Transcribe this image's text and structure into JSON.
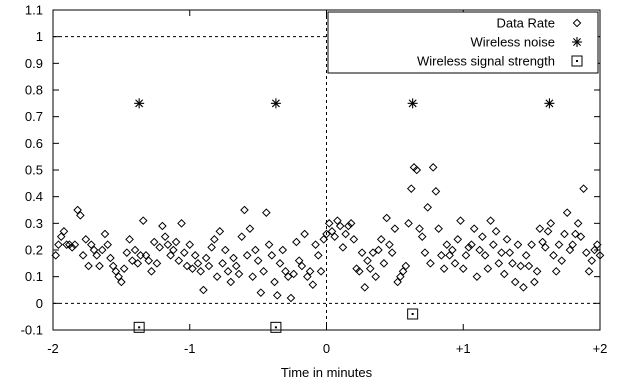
{
  "chart_data": {
    "type": "scatter",
    "xlabel": "Time in minutes",
    "ylabel": "",
    "xlim": [
      -2,
      2
    ],
    "ylim": [
      -0.1,
      1.1
    ],
    "xticks": [
      {
        "value": -2,
        "label": "-2"
      },
      {
        "value": -1,
        "label": "-1"
      },
      {
        "value": 0,
        "label": "0"
      },
      {
        "value": 1,
        "label": "+1"
      },
      {
        "value": 2,
        "label": "+2"
      }
    ],
    "yticks": [
      {
        "value": -0.1,
        "label": "-0.1"
      },
      {
        "value": 0,
        "label": "0"
      },
      {
        "value": 0.1,
        "label": "0.1"
      },
      {
        "value": 0.2,
        "label": "0.2"
      },
      {
        "value": 0.3,
        "label": "0.3"
      },
      {
        "value": 0.4,
        "label": "0.4"
      },
      {
        "value": 0.5,
        "label": "0.5"
      },
      {
        "value": 0.6,
        "label": "0.6"
      },
      {
        "value": 0.7,
        "label": "0.7"
      },
      {
        "value": 0.8,
        "label": "0.8"
      },
      {
        "value": 0.9,
        "label": "0.9"
      },
      {
        "value": 1,
        "label": "1"
      },
      {
        "value": 1.1,
        "label": "1.1"
      }
    ],
    "reference_lines": {
      "horizontal": [
        0,
        1
      ],
      "vertical": [
        0
      ]
    },
    "legend_position": "top-right",
    "series": [
      {
        "name": "Data Rate",
        "marker": "diamond",
        "points": [
          [
            -1.98,
            0.18
          ],
          [
            -1.96,
            0.22
          ],
          [
            -1.94,
            0.25
          ],
          [
            -1.92,
            0.27
          ],
          [
            -1.9,
            0.22
          ],
          [
            -1.88,
            0.22
          ],
          [
            -1.86,
            0.21
          ],
          [
            -1.84,
            0.22
          ],
          [
            -1.82,
            0.35
          ],
          [
            -1.8,
            0.33
          ],
          [
            -1.78,
            0.18
          ],
          [
            -1.76,
            0.24
          ],
          [
            -1.74,
            0.14
          ],
          [
            -1.72,
            0.22
          ],
          [
            -1.7,
            0.2
          ],
          [
            -1.68,
            0.18
          ],
          [
            -1.66,
            0.14
          ],
          [
            -1.64,
            0.2
          ],
          [
            -1.62,
            0.26
          ],
          [
            -1.6,
            0.22
          ],
          [
            -1.58,
            0.17
          ],
          [
            -1.56,
            0.14
          ],
          [
            -1.54,
            0.12
          ],
          [
            -1.52,
            0.1
          ],
          [
            -1.5,
            0.08
          ],
          [
            -1.48,
            0.13
          ],
          [
            -1.46,
            0.19
          ],
          [
            -1.44,
            0.24
          ],
          [
            -1.42,
            0.16
          ],
          [
            -1.4,
            0.2
          ],
          [
            -1.38,
            0.15
          ],
          [
            -1.36,
            0.18
          ],
          [
            -1.34,
            0.31
          ],
          [
            -1.32,
            0.18
          ],
          [
            -1.3,
            0.16
          ],
          [
            -1.28,
            0.12
          ],
          [
            -1.26,
            0.23
          ],
          [
            -1.24,
            0.15
          ],
          [
            -1.22,
            0.21
          ],
          [
            -1.2,
            0.29
          ],
          [
            -1.18,
            0.25
          ],
          [
            -1.16,
            0.22
          ],
          [
            -1.14,
            0.18
          ],
          [
            -1.12,
            0.2
          ],
          [
            -1.1,
            0.23
          ],
          [
            -1.08,
            0.16
          ],
          [
            -1.06,
            0.3
          ],
          [
            -1.04,
            0.19
          ],
          [
            -1.02,
            0.14
          ],
          [
            -1.0,
            0.22
          ],
          [
            -0.98,
            0.13
          ],
          [
            -0.96,
            0.18
          ],
          [
            -0.94,
            0.15
          ],
          [
            -0.92,
            0.12
          ],
          [
            -0.9,
            0.05
          ],
          [
            -0.88,
            0.17
          ],
          [
            -0.86,
            0.14
          ],
          [
            -0.84,
            0.21
          ],
          [
            -0.82,
            0.24
          ],
          [
            -0.8,
            0.1
          ],
          [
            -0.78,
            0.27
          ],
          [
            -0.76,
            0.15
          ],
          [
            -0.74,
            0.2
          ],
          [
            -0.72,
            0.12
          ],
          [
            -0.7,
            0.08
          ],
          [
            -0.68,
            0.17
          ],
          [
            -0.66,
            0.14
          ],
          [
            -0.64,
            0.11
          ],
          [
            -0.62,
            0.25
          ],
          [
            -0.6,
            0.35
          ],
          [
            -0.58,
            0.18
          ],
          [
            -0.56,
            0.28
          ],
          [
            -0.54,
            0.1
          ],
          [
            -0.52,
            0.2
          ],
          [
            -0.5,
            0.16
          ],
          [
            -0.48,
            0.04
          ],
          [
            -0.46,
            0.12
          ],
          [
            -0.44,
            0.34
          ],
          [
            -0.42,
            0.22
          ],
          [
            -0.4,
            0.18
          ],
          [
            -0.38,
            0.08
          ],
          [
            -0.36,
            0.03
          ],
          [
            -0.34,
            0.15
          ],
          [
            -0.32,
            0.2
          ],
          [
            -0.3,
            0.12
          ],
          [
            -0.28,
            0.1
          ],
          [
            -0.26,
            0.02
          ],
          [
            -0.24,
            0.11
          ],
          [
            -0.22,
            0.23
          ],
          [
            -0.2,
            0.16
          ],
          [
            -0.18,
            0.14
          ],
          [
            -0.16,
            0.26
          ],
          [
            -0.14,
            0.1
          ],
          [
            -0.12,
            0.12
          ],
          [
            -0.1,
            0.07
          ],
          [
            -0.08,
            0.22
          ],
          [
            -0.06,
            0.18
          ],
          [
            -0.04,
            0.12
          ],
          [
            -0.02,
            0.24
          ],
          [
            0.0,
            0.26
          ],
          [
            0.02,
            0.3
          ],
          [
            0.04,
            0.27
          ],
          [
            0.06,
            0.25
          ],
          [
            0.08,
            0.31
          ],
          [
            0.1,
            0.29
          ],
          [
            0.12,
            0.21
          ],
          [
            0.14,
            0.26
          ],
          [
            0.16,
            0.29
          ],
          [
            0.18,
            0.3
          ],
          [
            0.2,
            0.24
          ],
          [
            0.22,
            0.13
          ],
          [
            0.24,
            0.12
          ],
          [
            0.26,
            0.19
          ],
          [
            0.28,
            0.06
          ],
          [
            0.3,
            0.16
          ],
          [
            0.32,
            0.13
          ],
          [
            0.34,
            0.19
          ],
          [
            0.36,
            0.1
          ],
          [
            0.38,
            0.2
          ],
          [
            0.4,
            0.24
          ],
          [
            0.42,
            0.15
          ],
          [
            0.44,
            0.32
          ],
          [
            0.46,
            0.22
          ],
          [
            0.48,
            0.19
          ],
          [
            0.5,
            0.28
          ],
          [
            0.52,
            0.08
          ],
          [
            0.54,
            0.1
          ],
          [
            0.56,
            0.12
          ],
          [
            0.58,
            0.14
          ],
          [
            0.6,
            0.3
          ],
          [
            0.62,
            0.43
          ],
          [
            0.64,
            0.51
          ],
          [
            0.66,
            0.5
          ],
          [
            0.68,
            0.28
          ],
          [
            0.7,
            0.25
          ],
          [
            0.72,
            0.19
          ],
          [
            0.74,
            0.36
          ],
          [
            0.76,
            0.15
          ],
          [
            0.78,
            0.51
          ],
          [
            0.8,
            0.42
          ],
          [
            0.82,
            0.28
          ],
          [
            0.84,
            0.18
          ],
          [
            0.86,
            0.13
          ],
          [
            0.88,
            0.22
          ],
          [
            0.9,
            0.18
          ],
          [
            0.92,
            0.2
          ],
          [
            0.94,
            0.15
          ],
          [
            0.96,
            0.24
          ],
          [
            0.98,
            0.31
          ],
          [
            1.0,
            0.13
          ],
          [
            1.02,
            0.18
          ],
          [
            1.04,
            0.21
          ],
          [
            1.06,
            0.22
          ],
          [
            1.08,
            0.28
          ],
          [
            1.1,
            0.1
          ],
          [
            1.12,
            0.2
          ],
          [
            1.14,
            0.25
          ],
          [
            1.16,
            0.18
          ],
          [
            1.18,
            0.13
          ],
          [
            1.2,
            0.31
          ],
          [
            1.22,
            0.22
          ],
          [
            1.24,
            0.27
          ],
          [
            1.26,
            0.15
          ],
          [
            1.28,
            0.19
          ],
          [
            1.3,
            0.11
          ],
          [
            1.32,
            0.24
          ],
          [
            1.34,
            0.19
          ],
          [
            1.36,
            0.15
          ],
          [
            1.38,
            0.08
          ],
          [
            1.4,
            0.22
          ],
          [
            1.42,
            0.14
          ],
          [
            1.44,
            0.06
          ],
          [
            1.46,
            0.18
          ],
          [
            1.48,
            0.14
          ],
          [
            1.5,
            0.22
          ],
          [
            1.52,
            0.08
          ],
          [
            1.54,
            0.12
          ],
          [
            1.56,
            0.28
          ],
          [
            1.58,
            0.23
          ],
          [
            1.6,
            0.21
          ],
          [
            1.62,
            0.27
          ],
          [
            1.64,
            0.3
          ],
          [
            1.66,
            0.18
          ],
          [
            1.68,
            0.12
          ],
          [
            1.7,
            0.22
          ],
          [
            1.72,
            0.16
          ],
          [
            1.74,
            0.26
          ],
          [
            1.76,
            0.34
          ],
          [
            1.78,
            0.2
          ],
          [
            1.8,
            0.22
          ],
          [
            1.82,
            0.26
          ],
          [
            1.84,
            0.3
          ],
          [
            1.86,
            0.25
          ],
          [
            1.88,
            0.43
          ],
          [
            1.9,
            0.19
          ],
          [
            1.92,
            0.12
          ],
          [
            1.94,
            0.16
          ],
          [
            1.96,
            0.2
          ],
          [
            1.98,
            0.22
          ],
          [
            2.0,
            0.18
          ]
        ]
      },
      {
        "name": "Wireless noise",
        "marker": "star",
        "points": [
          [
            -1.37,
            0.75
          ],
          [
            -0.37,
            0.75
          ],
          [
            0.63,
            0.75
          ],
          [
            1.63,
            0.75
          ]
        ]
      },
      {
        "name": "Wireless signal strength",
        "marker": "square",
        "points": [
          [
            -1.37,
            -0.09
          ],
          [
            -0.37,
            -0.09
          ],
          [
            0.63,
            -0.04
          ]
        ]
      }
    ]
  }
}
